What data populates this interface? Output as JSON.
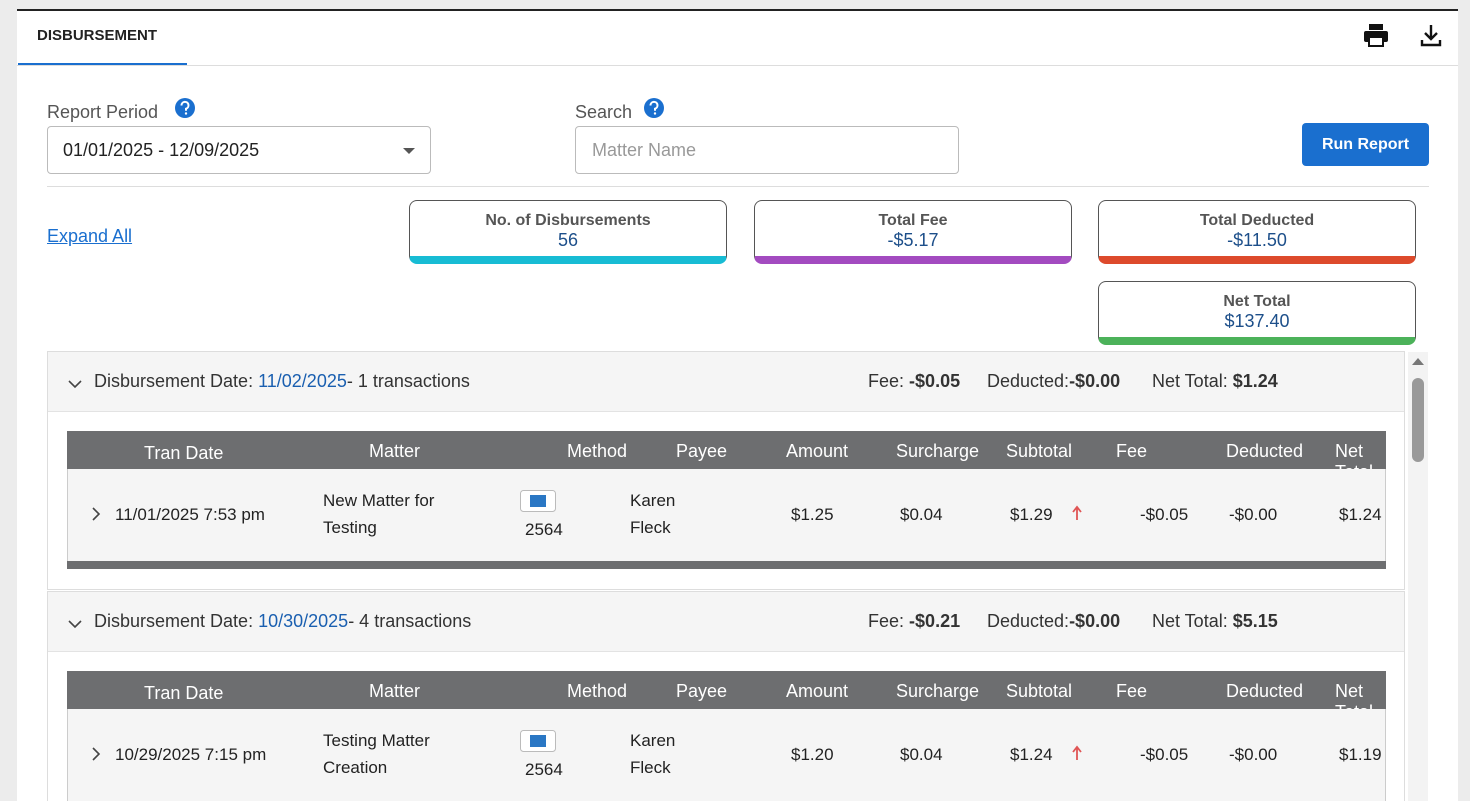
{
  "tab": "DISBURSEMENT",
  "filters": {
    "report_period": {
      "label": "Report Period",
      "value": "01/01/2025 - 12/09/2025"
    },
    "search": {
      "label": "Search",
      "placeholder": "Matter Name"
    },
    "run_button": "Run Report"
  },
  "expand_all": "Expand All",
  "summary": [
    {
      "label": "No. of Disbursements",
      "value": "56",
      "color": "#17bcd4"
    },
    {
      "label": "Total Fee",
      "value": "-$5.17",
      "color": "#a34bc0"
    },
    {
      "label": "Total Deducted",
      "value": "-$11.50",
      "color": "#dd4a2c"
    },
    {
      "label": "Net Total",
      "value": "$137.40",
      "color": "#4cb25a"
    }
  ],
  "group_labels": {
    "date": "Disbursement Date:",
    "fee": "Fee:",
    "deducted": "Deducted:",
    "net_total": "Net Total:"
  },
  "columns": [
    "Tran Date",
    "Matter",
    "Method",
    "Payee",
    "Amount",
    "Surcharge",
    "Subtotal",
    "Fee",
    "Deducted",
    "Net Total"
  ],
  "groups": [
    {
      "date": "11/02/2025",
      "count": "- 1 transactions",
      "fee": "-$0.05",
      "deducted": "-$0.00",
      "net_total": "$1.24",
      "rows": [
        {
          "tran_date": "11/01/2025 7:53 pm",
          "matter": "New Matter for Testing",
          "card": "2564",
          "payee": "Karen Fleck",
          "amount": "$1.25",
          "surcharge": "$0.04",
          "subtotal": "$1.29",
          "fee": "-$0.05",
          "deducted": "-$0.00",
          "net_total": "$1.24"
        }
      ]
    },
    {
      "date": "10/30/2025",
      "count": "- 4 transactions",
      "fee": "-$0.21",
      "deducted": "-$0.00",
      "net_total": "$5.15",
      "rows": [
        {
          "tran_date": "10/29/2025 7:15 pm",
          "matter": "Testing Matter Creation",
          "card": "2564",
          "payee": "Karen Fleck",
          "amount": "$1.20",
          "surcharge": "$0.04",
          "subtotal": "$1.24",
          "fee": "-$0.05",
          "deducted": "-$0.00",
          "net_total": "$1.19"
        }
      ]
    }
  ]
}
